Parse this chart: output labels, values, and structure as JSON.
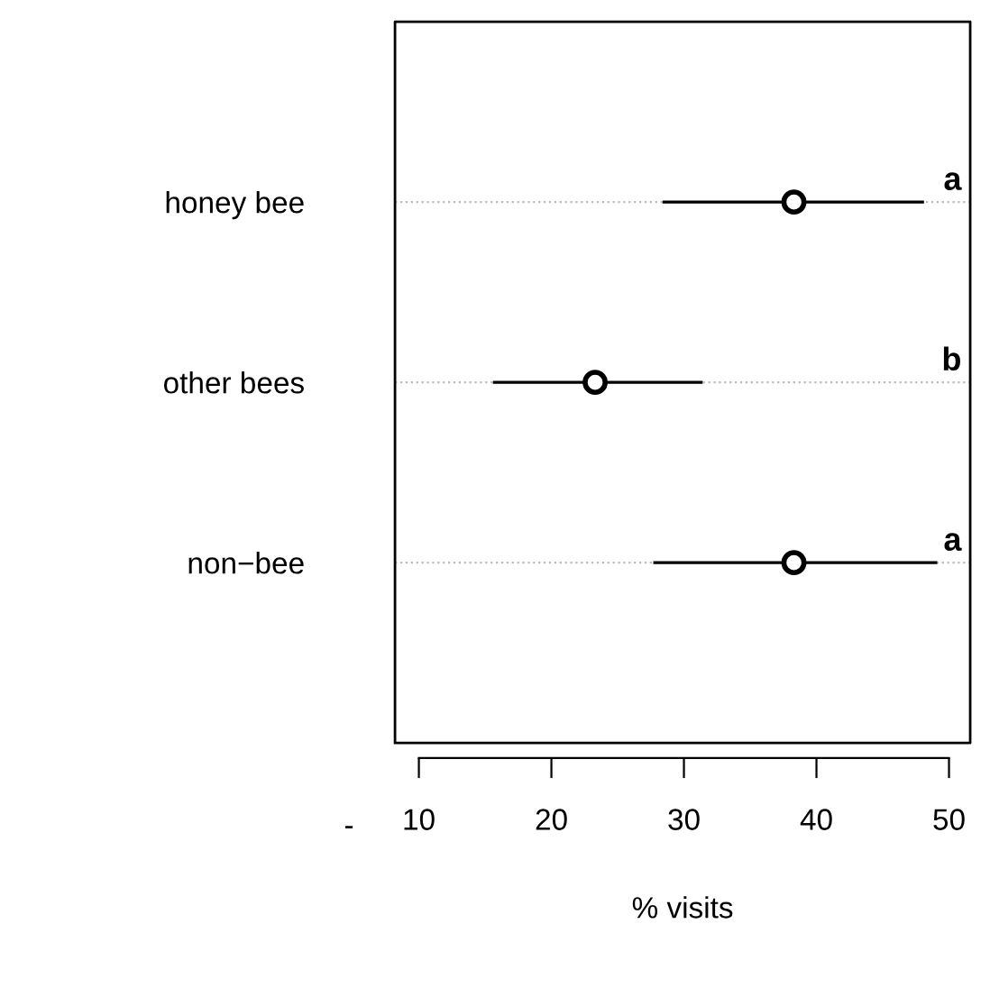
{
  "chart_data": {
    "type": "scatter",
    "orientation": "horizontal",
    "xlabel": "% visits",
    "categories": [
      "honey bee",
      "other bees",
      "non−bee"
    ],
    "values": [
      38.3,
      23.3,
      38.3
    ],
    "errors": [
      [
        28.5,
        48.0
      ],
      [
        15.7,
        31.3
      ],
      [
        27.8,
        49.0
      ]
    ],
    "color": "#000000",
    "marker": "circle",
    "grid": "y",
    "xlim": [
      8.2,
      51.6
    ],
    "xticks": [
      10,
      20,
      30,
      40,
      50
    ],
    "annotations": [
      "a",
      "b",
      "a",
      "-"
    ]
  }
}
